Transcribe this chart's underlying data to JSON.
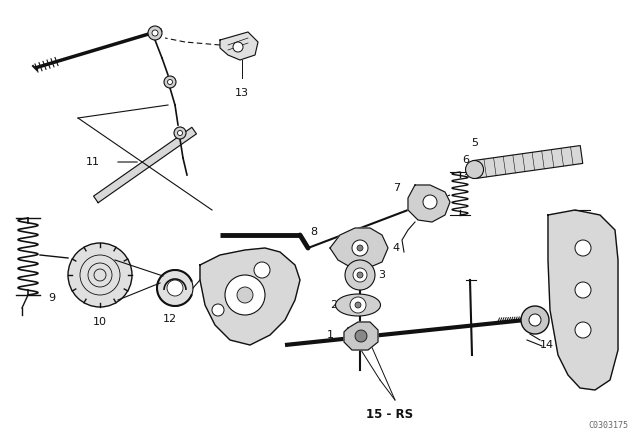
{
  "bg_color": "#ffffff",
  "line_color": "#111111",
  "fig_width": 6.4,
  "fig_height": 4.48,
  "dpi": 100,
  "catalog_number": "C0303175"
}
